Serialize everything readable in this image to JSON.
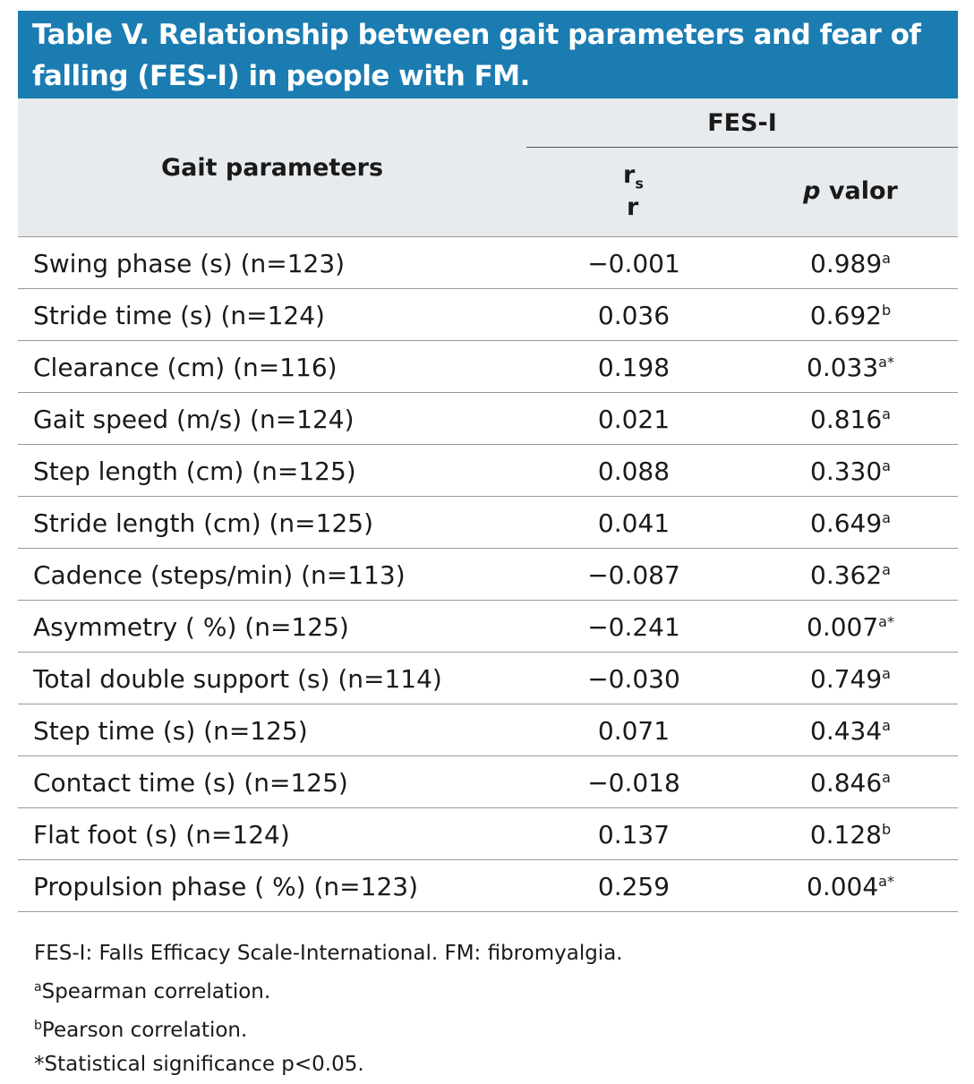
{
  "title": "Table V. Relationship between gait parameters and fear of falling (FES-I) in people with FM.",
  "header": {
    "group": "FES-I",
    "row_label": "Gait parameters",
    "r_main": "r",
    "r_sub": "s",
    "r_extra": "r",
    "p_italic": "p",
    "p_rest": " valor"
  },
  "table": {
    "rows": [
      {
        "label": "Swing phase (s) (n=123)",
        "r": "−0.001",
        "p": "0.989",
        "note": "a"
      },
      {
        "label": "Stride time (s) (n=124)",
        "r": "0.036",
        "p": "0.692",
        "note": "b"
      },
      {
        "label": "Clearance (cm) (n=116)",
        "r": "0.198",
        "p": "0.033",
        "note": "a*"
      },
      {
        "label": "Gait speed (m/s) (n=124)",
        "r": "0.021",
        "p": "0.816",
        "note": "a"
      },
      {
        "label": "Step length (cm) (n=125)",
        "r": "0.088",
        "p": "0.330",
        "note": "a"
      },
      {
        "label": "Stride length (cm) (n=125)",
        "r": "0.041",
        "p": "0.649",
        "note": "a"
      },
      {
        "label": "Cadence (steps/min) (n=113)",
        "r": "−0.087",
        "p": "0.362",
        "note": "a"
      },
      {
        "label": "Asymmetry ( %) (n=125)",
        "r": "−0.241",
        "p": "0.007",
        "note": "a*"
      },
      {
        "label": "Total double support (s) (n=114)",
        "r": "−0.030",
        "p": "0.749",
        "note": "a"
      },
      {
        "label": "Step time (s) (n=125)",
        "r": "0.071",
        "p": "0.434",
        "note": "a"
      },
      {
        "label": "Contact time (s) (n=125)",
        "r": "−0.018",
        "p": "0.846",
        "note": "a"
      },
      {
        "label": "Flat foot (s) (n=124)",
        "r": "0.137",
        "p": "0.128",
        "note": "b"
      },
      {
        "label": "Propulsion phase ( %) (n=123)",
        "r": "0.259",
        "p": "0.004",
        "note": "a*"
      }
    ]
  },
  "footnotes": [
    {
      "mark": "",
      "text": "FES-I: Falls Efficacy Scale-International. FM: fibromyalgia."
    },
    {
      "mark": "a",
      "text": "Spearman correlation."
    },
    {
      "mark": "b",
      "text": "Pearson correlation."
    },
    {
      "mark": "",
      "text": "*Statistical significance p<0.05."
    }
  ]
}
